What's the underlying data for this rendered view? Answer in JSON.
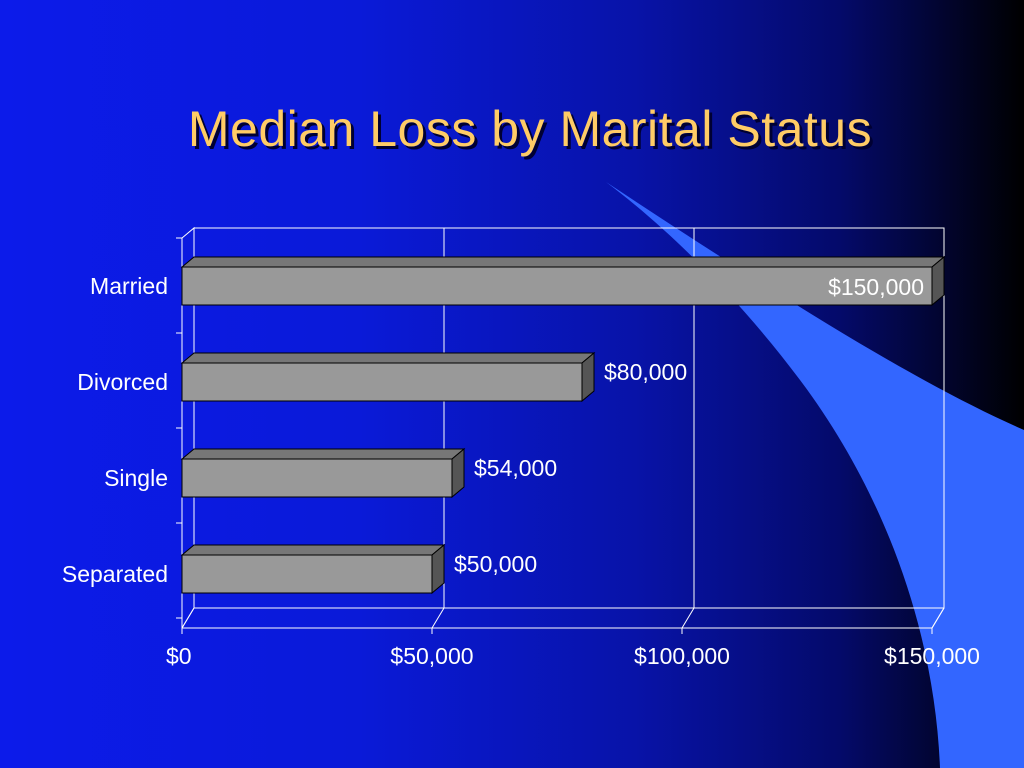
{
  "slide": {
    "title": "Median Loss by Marital Status"
  },
  "colors": {
    "background_left": "#0c1bea",
    "background_right": "#000000",
    "title": "#ffcc66",
    "bar_front": "#999999",
    "bar_top": "#777777",
    "bar_side": "#555555",
    "gridline": "#ffffff",
    "text": "#ffffff",
    "decorative_swoosh": "#3366ff"
  },
  "chart_data": {
    "type": "bar",
    "orientation": "horizontal",
    "style": "3d",
    "title": "Median Loss by Marital Status",
    "categories": [
      "Married",
      "Divorced",
      "Single",
      "Separated"
    ],
    "values": [
      150000,
      80000,
      54000,
      50000
    ],
    "data_labels": [
      "$150,000",
      "$80,000",
      "$54,000",
      "$50,000"
    ],
    "xlim": [
      0,
      150000
    ],
    "x_ticks": [
      0,
      50000,
      100000,
      150000
    ],
    "x_tick_labels": [
      "$0",
      "$50,000",
      "$100,000",
      "$150,000"
    ],
    "xlabel": "",
    "ylabel": "",
    "grid": "vertical",
    "legend": "none"
  }
}
